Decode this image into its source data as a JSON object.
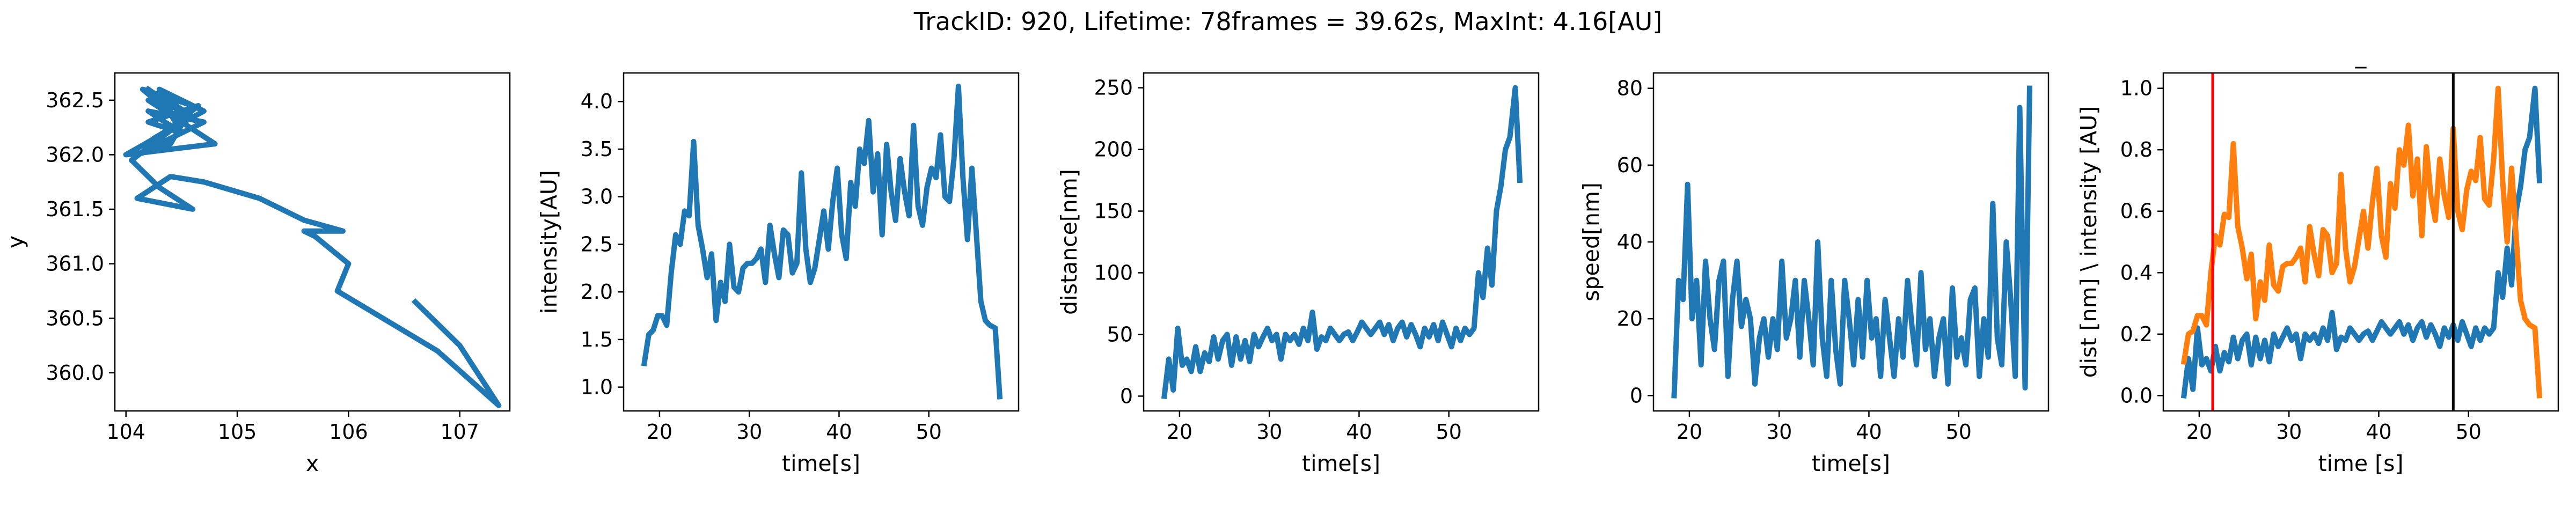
{
  "figure": {
    "suptitle": "TrackID: 920, Lifetime: 78frames = 39.62s, MaxInt: 4.16[AU]"
  },
  "chart_data": [
    {
      "type": "line",
      "title": "",
      "xlabel": "x",
      "ylabel": "y",
      "xlim": [
        103.9,
        107.45
      ],
      "ylim": [
        359.65,
        362.75
      ],
      "xticks": [
        104,
        105,
        106,
        107
      ],
      "yticks": [
        360.0,
        360.5,
        361.0,
        361.5,
        362.0,
        362.5
      ],
      "tick_format": {
        "x": 0,
        "y": 1
      },
      "grid": false,
      "series": [
        {
          "color": "#1f77b4",
          "x": [
            106.6,
            107.0,
            107.35,
            106.8,
            105.9,
            106.0,
            105.7,
            105.6,
            105.95,
            105.6,
            105.2,
            104.7,
            104.4,
            104.1,
            104.6,
            104.3,
            104.05,
            104.5,
            104.2,
            104.8,
            104.0,
            104.6,
            104.3,
            104.5,
            104.2,
            104.7,
            104.1,
            104.4,
            104.6,
            104.15,
            104.5,
            104.25,
            104.7,
            104.3,
            104.5,
            104.2,
            104.65,
            104.35,
            104.55,
            104.2
          ],
          "y": [
            360.65,
            360.25,
            359.7,
            360.2,
            360.75,
            361.0,
            361.25,
            361.3,
            361.3,
            361.4,
            361.6,
            361.75,
            361.8,
            361.6,
            361.5,
            361.7,
            361.95,
            362.3,
            362.5,
            362.1,
            362.0,
            362.35,
            362.55,
            362.2,
            362.4,
            362.3,
            362.0,
            362.1,
            362.45,
            362.6,
            362.3,
            362.15,
            362.4,
            362.6,
            362.2,
            362.3,
            362.45,
            362.2,
            362.35,
            362.6
          ]
        }
      ]
    },
    {
      "type": "line",
      "title": "",
      "xlabel": "time[s]",
      "ylabel": "intensity[AU]",
      "xlim": [
        16.0,
        60.0
      ],
      "ylim": [
        0.75,
        4.3
      ],
      "xticks": [
        20,
        30,
        40,
        50
      ],
      "yticks": [
        1.0,
        1.5,
        2.0,
        2.5,
        3.0,
        3.5,
        4.0
      ],
      "tick_format": {
        "x": 0,
        "y": 1
      },
      "grid": false,
      "series": [
        {
          "color": "#1f77b4",
          "x": [
            18.3,
            18.8,
            19.3,
            19.8,
            20.3,
            20.8,
            21.3,
            21.8,
            22.3,
            22.8,
            23.3,
            23.8,
            24.3,
            24.8,
            25.3,
            25.8,
            26.3,
            26.8,
            27.3,
            27.8,
            28.3,
            28.8,
            29.3,
            29.8,
            30.3,
            30.8,
            31.3,
            31.8,
            32.3,
            32.8,
            33.3,
            33.8,
            34.3,
            34.8,
            35.3,
            35.8,
            36.3,
            36.8,
            37.3,
            37.8,
            38.3,
            38.8,
            39.3,
            39.8,
            40.3,
            40.8,
            41.3,
            41.8,
            42.3,
            42.8,
            43.3,
            43.8,
            44.3,
            44.8,
            45.3,
            45.8,
            46.3,
            46.8,
            47.3,
            47.8,
            48.3,
            48.8,
            49.3,
            49.8,
            50.3,
            50.8,
            51.3,
            51.8,
            52.3,
            52.8,
            53.3,
            53.8,
            54.3,
            54.8,
            55.3,
            55.8,
            56.3,
            56.8,
            57.4,
            57.9
          ],
          "y": [
            1.25,
            1.55,
            1.6,
            1.75,
            1.75,
            1.65,
            2.2,
            2.6,
            2.5,
            2.85,
            2.8,
            3.58,
            2.7,
            2.45,
            2.15,
            2.4,
            1.7,
            2.1,
            1.9,
            2.5,
            2.05,
            2.0,
            2.25,
            2.3,
            2.3,
            2.35,
            2.45,
            2.1,
            2.7,
            2.4,
            2.15,
            2.65,
            2.6,
            2.2,
            2.3,
            3.25,
            2.45,
            2.1,
            2.25,
            2.55,
            2.85,
            2.45,
            2.95,
            3.3,
            2.6,
            2.35,
            3.15,
            2.9,
            3.5,
            3.35,
            3.8,
            3.05,
            3.45,
            2.6,
            3.55,
            3.05,
            2.75,
            3.4,
            3.05,
            2.8,
            3.75,
            2.9,
            2.7,
            3.1,
            3.3,
            3.2,
            3.65,
            3.0,
            2.95,
            3.4,
            4.16,
            3.2,
            2.55,
            3.3,
            2.6,
            1.9,
            1.7,
            1.65,
            1.62,
            0.9
          ]
        }
      ]
    },
    {
      "type": "line",
      "title": "",
      "xlabel": "time[s]",
      "ylabel": "distance[nm]",
      "xlim": [
        16.0,
        60.0
      ],
      "ylim": [
        -12,
        262
      ],
      "xticks": [
        20,
        30,
        40,
        50
      ],
      "yticks": [
        0,
        50,
        100,
        150,
        200,
        250
      ],
      "tick_format": {
        "x": 0,
        "y": 0
      },
      "grid": false,
      "series": [
        {
          "color": "#1f77b4",
          "x": [
            18.3,
            18.8,
            19.3,
            19.8,
            20.3,
            20.8,
            21.3,
            21.8,
            22.3,
            22.8,
            23.3,
            23.8,
            24.3,
            24.8,
            25.3,
            25.8,
            26.3,
            26.8,
            27.3,
            27.8,
            28.3,
            28.8,
            29.3,
            29.8,
            30.3,
            30.8,
            31.3,
            31.8,
            32.3,
            32.8,
            33.3,
            33.8,
            34.3,
            34.8,
            35.3,
            35.8,
            36.3,
            36.8,
            37.3,
            37.8,
            38.3,
            38.8,
            39.3,
            39.8,
            40.3,
            40.8,
            41.3,
            41.8,
            42.3,
            42.8,
            43.3,
            43.8,
            44.3,
            44.8,
            45.3,
            45.8,
            46.3,
            46.8,
            47.3,
            47.8,
            48.3,
            48.8,
            49.3,
            49.8,
            50.3,
            50.8,
            51.3,
            51.8,
            52.3,
            52.8,
            53.3,
            53.8,
            54.3,
            54.8,
            55.3,
            55.8,
            56.3,
            56.8,
            57.4,
            57.9
          ],
          "y": [
            0,
            30,
            5,
            55,
            25,
            30,
            20,
            40,
            20,
            35,
            28,
            48,
            30,
            45,
            50,
            25,
            48,
            30,
            45,
            28,
            50,
            40,
            48,
            55,
            45,
            50,
            30,
            50,
            45,
            50,
            42,
            55,
            45,
            68,
            38,
            48,
            45,
            55,
            50,
            45,
            50,
            52,
            45,
            52,
            60,
            55,
            50,
            55,
            60,
            50,
            58,
            45,
            55,
            60,
            48,
            58,
            50,
            40,
            55,
            48,
            58,
            45,
            60,
            50,
            40,
            55,
            45,
            55,
            50,
            55,
            100,
            80,
            120,
            90,
            150,
            170,
            200,
            210,
            250,
            175
          ]
        }
      ]
    },
    {
      "type": "line",
      "title": "",
      "xlabel": "time[s]",
      "ylabel": "speed[nm]",
      "xlim": [
        16.0,
        60.0
      ],
      "ylim": [
        -4,
        84
      ],
      "xticks": [
        20,
        30,
        40,
        50
      ],
      "yticks": [
        0,
        20,
        40,
        60,
        80
      ],
      "tick_format": {
        "x": 0,
        "y": 0
      },
      "grid": false,
      "series": [
        {
          "color": "#1f77b4",
          "x": [
            18.3,
            18.8,
            19.3,
            19.8,
            20.3,
            20.8,
            21.3,
            21.8,
            22.3,
            22.8,
            23.3,
            23.8,
            24.3,
            24.8,
            25.3,
            25.8,
            26.3,
            26.8,
            27.3,
            27.8,
            28.3,
            28.8,
            29.3,
            29.8,
            30.3,
            30.8,
            31.3,
            31.8,
            32.3,
            32.8,
            33.3,
            33.8,
            34.3,
            34.8,
            35.3,
            35.8,
            36.3,
            36.8,
            37.3,
            37.8,
            38.3,
            38.8,
            39.3,
            39.8,
            40.3,
            40.8,
            41.3,
            41.8,
            42.3,
            42.8,
            43.3,
            43.8,
            44.3,
            44.8,
            45.3,
            45.8,
            46.3,
            46.8,
            47.3,
            47.8,
            48.3,
            48.8,
            49.3,
            49.8,
            50.3,
            50.8,
            51.3,
            51.8,
            52.3,
            52.8,
            53.3,
            53.8,
            54.3,
            54.8,
            55.3,
            55.8,
            56.3,
            56.8,
            57.4,
            57.9
          ],
          "y": [
            0,
            30,
            25,
            55,
            20,
            30,
            8,
            35,
            20,
            12,
            30,
            35,
            5,
            25,
            35,
            18,
            25,
            20,
            3,
            15,
            20,
            10,
            20,
            12,
            35,
            15,
            20,
            30,
            10,
            30,
            20,
            8,
            40,
            15,
            5,
            30,
            12,
            3,
            30,
            20,
            8,
            25,
            10,
            30,
            15,
            20,
            5,
            25,
            15,
            5,
            20,
            10,
            30,
            18,
            8,
            32,
            12,
            20,
            5,
            15,
            20,
            3,
            28,
            10,
            15,
            8,
            25,
            28,
            5,
            20,
            10,
            50,
            15,
            8,
            40,
            25,
            5,
            75,
            2,
            80
          ]
        }
      ]
    },
    {
      "type": "line",
      "title": "_",
      "xlabel": "time [s]",
      "ylabel": "dist [nm] \\ intensity [AU]",
      "xlim": [
        16.0,
        60.0
      ],
      "ylim": [
        -0.05,
        1.05
      ],
      "xticks": [
        20,
        30,
        40,
        50
      ],
      "yticks": [
        0.0,
        0.2,
        0.4,
        0.6,
        0.8,
        1.0
      ],
      "tick_format": {
        "x": 0,
        "y": 1
      },
      "grid": false,
      "vlines": [
        {
          "x": 21.5,
          "color": "#ff0000"
        },
        {
          "x": 48.3,
          "color": "#000000"
        }
      ],
      "series": [
        {
          "color": "#1f77b4",
          "x": [
            18.3,
            18.8,
            19.3,
            19.8,
            20.3,
            20.8,
            21.3,
            21.8,
            22.3,
            22.8,
            23.3,
            23.8,
            24.3,
            24.8,
            25.3,
            25.8,
            26.3,
            26.8,
            27.3,
            27.8,
            28.3,
            28.8,
            29.3,
            29.8,
            30.3,
            30.8,
            31.3,
            31.8,
            32.3,
            32.8,
            33.3,
            33.8,
            34.3,
            34.8,
            35.3,
            35.8,
            36.3,
            36.8,
            37.3,
            37.8,
            38.3,
            38.8,
            39.3,
            39.8,
            40.3,
            40.8,
            41.3,
            41.8,
            42.3,
            42.8,
            43.3,
            43.8,
            44.3,
            44.8,
            45.3,
            45.8,
            46.3,
            46.8,
            47.3,
            47.8,
            48.3,
            48.8,
            49.3,
            49.8,
            50.3,
            50.8,
            51.3,
            51.8,
            52.3,
            52.8,
            53.3,
            53.8,
            54.3,
            54.8,
            55.3,
            55.8,
            56.3,
            56.8,
            57.4,
            57.9
          ],
          "y": [
            0.0,
            0.12,
            0.02,
            0.22,
            0.1,
            0.12,
            0.08,
            0.16,
            0.08,
            0.14,
            0.11,
            0.19,
            0.12,
            0.18,
            0.2,
            0.1,
            0.19,
            0.12,
            0.18,
            0.11,
            0.2,
            0.16,
            0.19,
            0.22,
            0.18,
            0.2,
            0.12,
            0.2,
            0.18,
            0.2,
            0.17,
            0.22,
            0.18,
            0.27,
            0.15,
            0.19,
            0.18,
            0.22,
            0.2,
            0.18,
            0.2,
            0.21,
            0.18,
            0.21,
            0.24,
            0.22,
            0.2,
            0.22,
            0.24,
            0.2,
            0.23,
            0.18,
            0.22,
            0.24,
            0.19,
            0.23,
            0.2,
            0.16,
            0.22,
            0.19,
            0.23,
            0.18,
            0.24,
            0.2,
            0.16,
            0.22,
            0.18,
            0.22,
            0.2,
            0.22,
            0.4,
            0.32,
            0.48,
            0.36,
            0.6,
            0.68,
            0.8,
            0.84,
            1.0,
            0.7
          ]
        },
        {
          "color": "#ff7f0e",
          "x": [
            18.3,
            18.8,
            19.3,
            19.8,
            20.3,
            20.8,
            21.3,
            21.8,
            22.3,
            22.8,
            23.3,
            23.8,
            24.3,
            24.8,
            25.3,
            25.8,
            26.3,
            26.8,
            27.3,
            27.8,
            28.3,
            28.8,
            29.3,
            29.8,
            30.3,
            30.8,
            31.3,
            31.8,
            32.3,
            32.8,
            33.3,
            33.8,
            34.3,
            34.8,
            35.3,
            35.8,
            36.3,
            36.8,
            37.3,
            37.8,
            38.3,
            38.8,
            39.3,
            39.8,
            40.3,
            40.8,
            41.3,
            41.8,
            42.3,
            42.8,
            43.3,
            43.8,
            44.3,
            44.8,
            45.3,
            45.8,
            46.3,
            46.8,
            47.3,
            47.8,
            48.3,
            48.8,
            49.3,
            49.8,
            50.3,
            50.8,
            51.3,
            51.8,
            52.3,
            52.8,
            53.3,
            53.8,
            54.3,
            54.8,
            55.3,
            55.8,
            56.3,
            56.8,
            57.4,
            57.9
          ],
          "y": [
            0.11,
            0.2,
            0.21,
            0.26,
            0.26,
            0.23,
            0.4,
            0.52,
            0.49,
            0.59,
            0.58,
            0.82,
            0.55,
            0.48,
            0.38,
            0.46,
            0.25,
            0.37,
            0.31,
            0.49,
            0.36,
            0.34,
            0.42,
            0.43,
            0.43,
            0.45,
            0.48,
            0.37,
            0.55,
            0.46,
            0.39,
            0.54,
            0.52,
            0.4,
            0.43,
            0.72,
            0.48,
            0.37,
            0.42,
            0.51,
            0.6,
            0.48,
            0.63,
            0.74,
            0.52,
            0.45,
            0.69,
            0.61,
            0.8,
            0.75,
            0.88,
            0.65,
            0.77,
            0.52,
            0.81,
            0.65,
            0.57,
            0.77,
            0.65,
            0.58,
            0.87,
            0.6,
            0.54,
            0.67,
            0.73,
            0.7,
            0.84,
            0.64,
            0.62,
            0.77,
            1.0,
            0.7,
            0.5,
            0.74,
            0.52,
            0.31,
            0.25,
            0.23,
            0.22,
            0.0
          ]
        }
      ]
    }
  ]
}
